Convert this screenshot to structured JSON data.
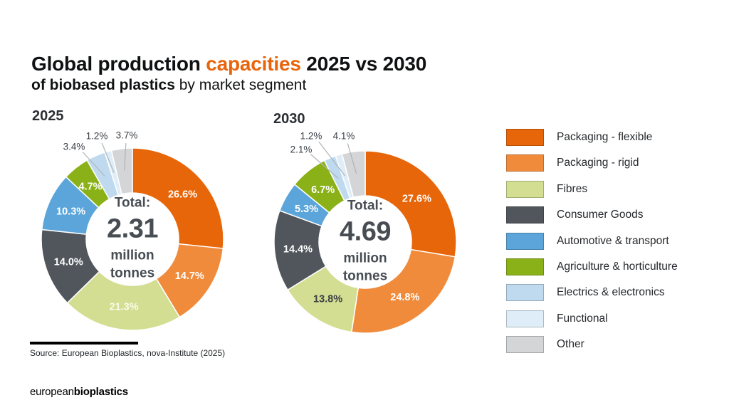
{
  "title": {
    "part1": "Global production ",
    "highlight": "capacities",
    "part2": " 2025 vs 2030",
    "line2_bold": "of biobased plastics",
    "line2_rest": " by market segment"
  },
  "colors": {
    "accent_orange": "#E8650C",
    "light_label": "#FFFFFF",
    "cream_label": "#FAFBE6",
    "dark_label": "#3C4147",
    "leader_line": "#AFB4B8",
    "center_text": "#474D53"
  },
  "legend": {
    "items": [
      {
        "label": "Packaging - flexible",
        "color": "#E7660A"
      },
      {
        "label": "Packaging - rigid",
        "color": "#F08B3C"
      },
      {
        "label": "Fibres",
        "color": "#D3DE92"
      },
      {
        "label": "Consumer Goods",
        "color": "#51565C"
      },
      {
        "label": "Automotive & transport",
        "color": "#5BA5DA"
      },
      {
        "label": "Agriculture & horticulture",
        "color": "#8BB118"
      },
      {
        "label": "Electrics & electronics",
        "color": "#BFDAEF"
      },
      {
        "label": "Functional",
        "color": "#DEEDF8"
      },
      {
        "label": "Other",
        "color": "#D3D5D7"
      }
    ]
  },
  "chart_data": [
    {
      "type": "pie",
      "title": "2025",
      "center": {
        "label": "Total:",
        "value": "2.31",
        "unit1": "million",
        "unit2": "tonnes"
      },
      "start_angle_deg": 0,
      "direction": "clockwise",
      "slices": [
        {
          "label": "Packaging - flexible",
          "value": 26.6,
          "color": "#E7660A",
          "label_style": "light"
        },
        {
          "label": "Packaging - rigid",
          "value": 14.7,
          "color": "#F08B3C",
          "label_style": "light"
        },
        {
          "label": "Fibres",
          "value": 21.3,
          "color": "#D3DE92",
          "label_style": "cream"
        },
        {
          "label": "Consumer Goods",
          "value": 14.0,
          "color": "#51565C",
          "label_style": "light"
        },
        {
          "label": "Automotive & transport",
          "value": 10.3,
          "color": "#5BA5DA",
          "label_style": "light"
        },
        {
          "label": "Agriculture & horticulture",
          "value": 4.7,
          "color": "#8BB118",
          "label_style": "light"
        },
        {
          "label": "Electrics & electronics",
          "value": 3.4,
          "color": "#BFDAEF",
          "label_style": "dark",
          "outside": true,
          "label_offset": [
            -82,
            -130
          ]
        },
        {
          "label": "Functional",
          "value": 1.2,
          "color": "#DEEDF8",
          "label_style": "dark",
          "outside": true,
          "label_offset": [
            -50,
            -145
          ]
        },
        {
          "label": "Other",
          "value": 3.7,
          "color": "#D3D5D7",
          "label_style": "dark",
          "outside": true,
          "label_offset": [
            -8,
            -146
          ]
        }
      ]
    },
    {
      "type": "pie",
      "title": "2030",
      "center": {
        "label": "Total:",
        "value": "4.69",
        "unit1": "million",
        "unit2": "tonnes"
      },
      "start_angle_deg": 0,
      "direction": "clockwise",
      "slices": [
        {
          "label": "Packaging - flexible",
          "value": 27.6,
          "color": "#E7660A",
          "label_style": "light"
        },
        {
          "label": "Packaging - rigid",
          "value": 24.8,
          "color": "#F08B3C",
          "label_style": "light"
        },
        {
          "label": "Fibres",
          "value": 13.8,
          "color": "#D3DE92",
          "label_style": "dark"
        },
        {
          "label": "Consumer Goods",
          "value": 14.4,
          "color": "#51565C",
          "label_style": "light"
        },
        {
          "label": "Automotive & transport",
          "value": 5.3,
          "color": "#5BA5DA",
          "label_style": "light"
        },
        {
          "label": "Agriculture & horticulture",
          "value": 6.7,
          "color": "#8BB118",
          "label_style": "light"
        },
        {
          "label": "Electrics & electronics",
          "value": 2.1,
          "color": "#BFDAEF",
          "label_style": "dark",
          "outside": true,
          "label_offset": [
            -90,
            -130
          ]
        },
        {
          "label": "Functional",
          "value": 1.2,
          "color": "#DEEDF8",
          "label_style": "dark",
          "outside": true,
          "label_offset": [
            -76,
            -149
          ]
        },
        {
          "label": "Other",
          "value": 4.1,
          "color": "#D3D5D7",
          "label_style": "dark",
          "outside": true,
          "label_offset": [
            -30,
            -149
          ]
        }
      ]
    }
  ],
  "source": {
    "text": "Source: European Bioplastics, nova-Institute (2025)"
  },
  "logo": {
    "normal": "european",
    "bold": "bioplastics"
  }
}
